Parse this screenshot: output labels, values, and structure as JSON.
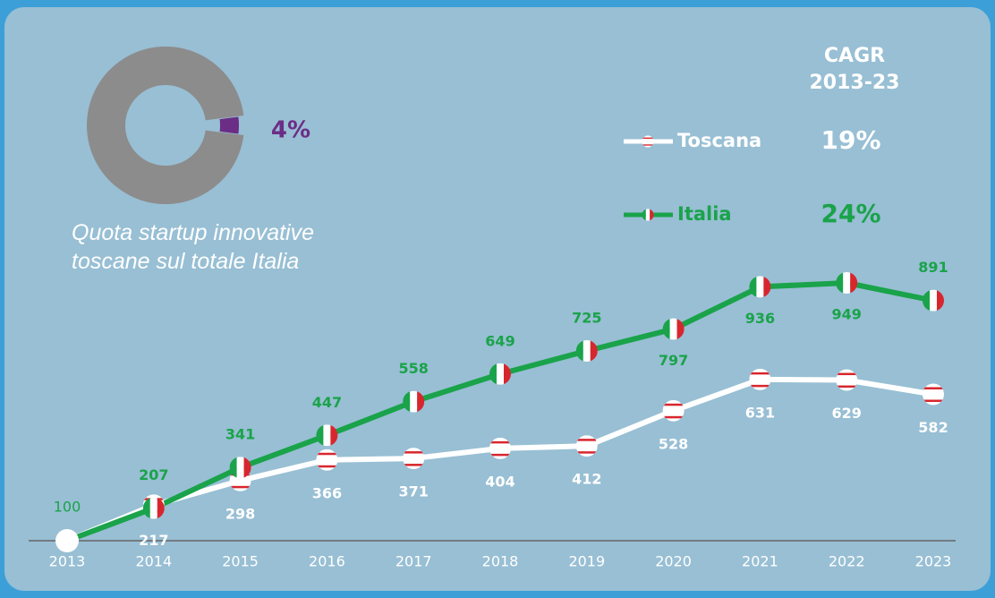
{
  "chart_data": [
    {
      "type": "pie",
      "title": "Quota startup innovative toscane sul totale Italia",
      "slices": [
        {
          "value": 4,
          "label": "4%",
          "color": "#6b2d86"
        },
        {
          "value": 96,
          "color": "#8c8c8c"
        }
      ]
    },
    {
      "type": "line",
      "legend_title": "CAGR 2013-23",
      "x": [
        "2013",
        "2014",
        "2015",
        "2016",
        "2017",
        "2018",
        "2019",
        "2020",
        "2021",
        "2022",
        "2023"
      ],
      "series": [
        {
          "name": "Toscana",
          "color": "#ffffff",
          "label_color": "#ffffff",
          "cagr": {
            "value": 19,
            "label": "19%"
          },
          "values": [
            100,
            217,
            298,
            366,
            371,
            404,
            412,
            528,
            631,
            629,
            582
          ]
        },
        {
          "name": "Italia",
          "color": "#1aa34a",
          "label_color": "#1aa34a",
          "cagr": {
            "value": 24,
            "label": "24%"
          },
          "values": [
            100,
            207,
            341,
            447,
            558,
            649,
            725,
            797,
            936,
            949,
            891
          ]
        }
      ]
    }
  ]
}
